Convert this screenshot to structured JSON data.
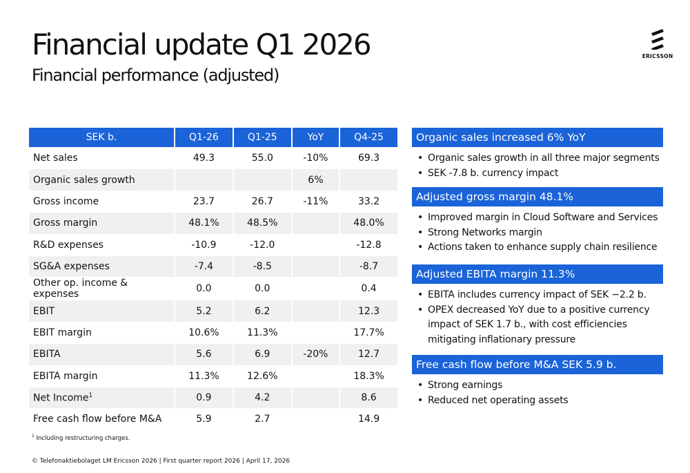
{
  "header": {
    "title": "Financial update Q1 2026",
    "subtitle": "Financial performance (adjusted)",
    "logo_text": "ERICSSON"
  },
  "table": {
    "columns": [
      "SEK b.",
      "Q1-26",
      "Q1-25",
      "YoY",
      "Q4-25"
    ],
    "rows": [
      {
        "label": "Net sales",
        "q126": "49.3",
        "q125": "55.0",
        "yoy": "-10%",
        "q425": "69.3"
      },
      {
        "label": "Organic sales growth",
        "q126": "",
        "q125": "",
        "yoy": "6%",
        "q425": ""
      },
      {
        "label": "Gross income",
        "q126": "23.7",
        "q125": "26.7",
        "yoy": "-11%",
        "q425": "33.2"
      },
      {
        "label": "Gross margin",
        "q126": "48.1%",
        "q125": "48.5%",
        "yoy": "",
        "q425": "48.0%"
      },
      {
        "label": "R&D expenses",
        "q126": "-10.9",
        "q125": "-12.0",
        "yoy": "",
        "q425": "-12.8"
      },
      {
        "label": "SG&A expenses",
        "q126": "-7.4",
        "q125": "-8.5",
        "yoy": "",
        "q425": "-8.7"
      },
      {
        "label": "Other op. income & expenses",
        "q126": "0.0",
        "q125": "0.0",
        "yoy": "",
        "q425": "0.4"
      },
      {
        "label": "EBIT",
        "q126": "5.2",
        "q125": "6.2",
        "yoy": "",
        "q425": "12.3"
      },
      {
        "label": "EBIT margin",
        "q126": "10.6%",
        "q125": "11.3%",
        "yoy": "",
        "q425": "17.7%"
      },
      {
        "label": "EBITA",
        "q126": "5.6",
        "q125": "6.9",
        "yoy": "-20%",
        "q425": "12.7"
      },
      {
        "label": "EBITA margin",
        "q126": "11.3%",
        "q125": "12.6%",
        "yoy": "",
        "q425": "18.3%"
      },
      {
        "label": "Net Income",
        "sup": "1",
        "q126": "0.9",
        "q125": "4.2",
        "yoy": "",
        "q425": "8.6"
      },
      {
        "label": "Free cash flow before M&A",
        "q126": "5.9",
        "q125": "2.7",
        "yoy": "",
        "q425": "14.9"
      }
    ]
  },
  "panels": [
    {
      "title": "Organic sales increased 6% YoY",
      "bullets": [
        "Organic sales growth in all three major segments",
        "SEK -7.8 b. currency impact"
      ]
    },
    {
      "title": "Adjusted gross margin 48.1%",
      "bullets": [
        "Improved margin in Cloud Software and Services",
        "Strong Networks margin",
        "Actions taken to enhance supply chain resilience"
      ]
    },
    {
      "title": "Adjusted EBITA margin 11.3%",
      "bullets": [
        "EBITA includes currency impact of SEK −2.2 b.",
        "OPEX decreased YoY due to a positive currency impact of SEK 1.7 b., with cost efficiencies mitigating inflationary pressure"
      ]
    },
    {
      "title": "Free cash flow before M&A SEK 5.9 b.",
      "bullets": [
        "Strong earnings",
        "Reduced net operating assets"
      ]
    }
  ],
  "bullet_char": "•",
  "footnote": {
    "marker": "1",
    "text": "Including restructuring charges."
  },
  "footer": "© Telefonaktiebolaget LM Ericsson 2026 | First quarter report 2026 | April 17, 2026",
  "colors": {
    "accent": "#1a63d8",
    "row_alt": "#f0f0f0"
  }
}
